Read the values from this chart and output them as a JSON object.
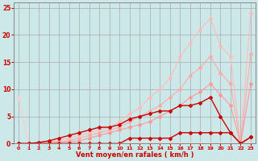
{
  "title": "",
  "xlabel": "Vent moyen/en rafales ( km/h )",
  "ylabel": "",
  "xlim": [
    -0.5,
    23.5
  ],
  "ylim": [
    0,
    26
  ],
  "background_color": "#cce8e8",
  "grid_color": "#aaaaaa",
  "xlabel_color": "#cc0000",
  "tick_color": "#cc0000",
  "lines": [
    {
      "x": [
        0,
        1,
        2,
        3,
        4,
        5,
        6,
        7,
        8,
        9,
        10,
        11,
        12,
        13,
        14,
        15,
        16,
        17,
        18,
        19,
        20,
        21,
        22,
        23
      ],
      "y": [
        0,
        0,
        0,
        0.3,
        0.5,
        1.0,
        1.5,
        2.0,
        2.5,
        3.0,
        4.0,
        5.5,
        6.5,
        8.5,
        10,
        12,
        16,
        18.5,
        21,
        23,
        18,
        16,
        0,
        24
      ],
      "color": "#ffbbbb",
      "marker": "D",
      "markersize": 2,
      "linewidth": 0.8
    },
    {
      "x": [
        0,
        1,
        2,
        3,
        4,
        5,
        6,
        7,
        8,
        9,
        10,
        11,
        12,
        13,
        14,
        15,
        16,
        17,
        18,
        19,
        20,
        21,
        22,
        23
      ],
      "y": [
        0,
        0,
        0,
        0.2,
        0.3,
        0.5,
        1.0,
        1.5,
        2.0,
        2.5,
        3.0,
        4.0,
        5.0,
        6.0,
        7.0,
        8.5,
        10,
        12.5,
        14,
        16,
        13,
        11,
        0,
        16.5
      ],
      "color": "#ffaaaa",
      "marker": "D",
      "markersize": 2,
      "linewidth": 0.8
    },
    {
      "x": [
        0,
        1,
        2,
        3,
        4,
        5,
        6,
        7,
        8,
        9,
        10,
        11,
        12,
        13,
        14,
        15,
        16,
        17,
        18,
        19,
        20,
        21,
        22,
        23
      ],
      "y": [
        0,
        0,
        0,
        0,
        0.2,
        0.3,
        0.5,
        1.0,
        1.5,
        2.0,
        2.5,
        3.0,
        3.5,
        4.0,
        5.0,
        6.0,
        7.0,
        8.5,
        9.5,
        11,
        9,
        7,
        0,
        11
      ],
      "color": "#ff9999",
      "marker": "D",
      "markersize": 2,
      "linewidth": 0.8
    },
    {
      "x": [
        0,
        1,
        2,
        3,
        4,
        5,
        6,
        7,
        8,
        9,
        10,
        11,
        12,
        13,
        14,
        15,
        16,
        17,
        18,
        19,
        20,
        21,
        22,
        23
      ],
      "y": [
        8.5,
        0,
        0,
        0,
        0,
        0,
        0,
        0,
        0,
        0,
        0,
        0,
        0,
        0,
        0,
        0,
        0,
        0,
        0,
        0,
        0,
        0,
        0,
        0
      ],
      "color": "#ffcccc",
      "marker": "D",
      "markersize": 2,
      "linewidth": 0.8
    },
    {
      "x": [
        0,
        1,
        2,
        3,
        4,
        5,
        6,
        7,
        8,
        9,
        10,
        11,
        12,
        13,
        14,
        15,
        16,
        17,
        18,
        19,
        20,
        21,
        22,
        23
      ],
      "y": [
        0,
        0,
        0.2,
        0.5,
        1.0,
        1.5,
        2.0,
        2.5,
        3.0,
        3.0,
        3.5,
        4.5,
        5.0,
        5.5,
        6.0,
        6.0,
        7.0,
        7.0,
        7.5,
        8.5,
        5.0,
        2.0,
        0,
        1.2
      ],
      "color": "#cc0000",
      "marker": "D",
      "markersize": 2,
      "linewidth": 1.0
    },
    {
      "x": [
        0,
        1,
        2,
        3,
        4,
        5,
        6,
        7,
        8,
        9,
        10,
        11,
        12,
        13,
        14,
        15,
        16,
        17,
        18,
        19,
        20,
        21,
        22,
        23
      ],
      "y": [
        0,
        0,
        0,
        0,
        0,
        0,
        0,
        0,
        0,
        0,
        0,
        1.0,
        1.0,
        1.0,
        1.0,
        1.0,
        2.0,
        2.0,
        2.0,
        2.0,
        2.0,
        2.0,
        0,
        1.2
      ],
      "color": "#cc0000",
      "marker": "D",
      "markersize": 2,
      "linewidth": 1.0
    }
  ],
  "xticks": [
    0,
    1,
    2,
    3,
    4,
    5,
    6,
    7,
    8,
    9,
    10,
    11,
    12,
    13,
    14,
    15,
    16,
    17,
    18,
    19,
    20,
    21,
    22,
    23
  ],
  "yticks": [
    0,
    5,
    10,
    15,
    20,
    25
  ]
}
